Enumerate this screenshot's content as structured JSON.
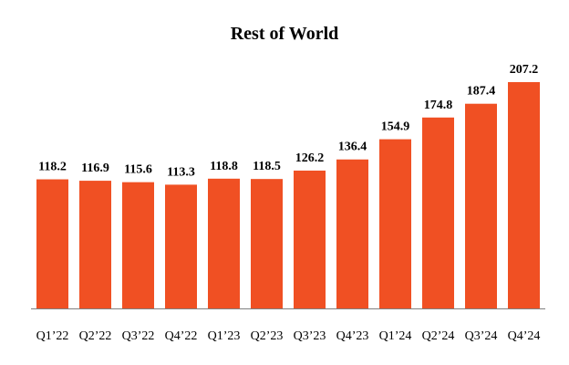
{
  "chart_data": {
    "type": "bar",
    "title": "Rest of World",
    "xlabel": "",
    "ylabel": "",
    "categories": [
      "Q1’22",
      "Q2’22",
      "Q3’22",
      "Q4’22",
      "Q1’23",
      "Q2’23",
      "Q3’23",
      "Q4’23",
      "Q1’24",
      "Q2’24",
      "Q3’24",
      "Q4’24"
    ],
    "values": [
      118.2,
      116.9,
      115.6,
      113.3,
      118.8,
      118.5,
      126.2,
      136.4,
      154.9,
      174.8,
      187.4,
      207.2
    ],
    "value_labels": [
      "118.2",
      "116.9",
      "115.6",
      "113.3",
      "118.8",
      "118.5",
      "126.2",
      "136.4",
      "154.9",
      "174.8",
      "187.4",
      "207.2"
    ],
    "ylim": [
      0,
      207.2
    ],
    "grid": false,
    "bar_color": "#F05023",
    "axis_color": "#808080"
  }
}
